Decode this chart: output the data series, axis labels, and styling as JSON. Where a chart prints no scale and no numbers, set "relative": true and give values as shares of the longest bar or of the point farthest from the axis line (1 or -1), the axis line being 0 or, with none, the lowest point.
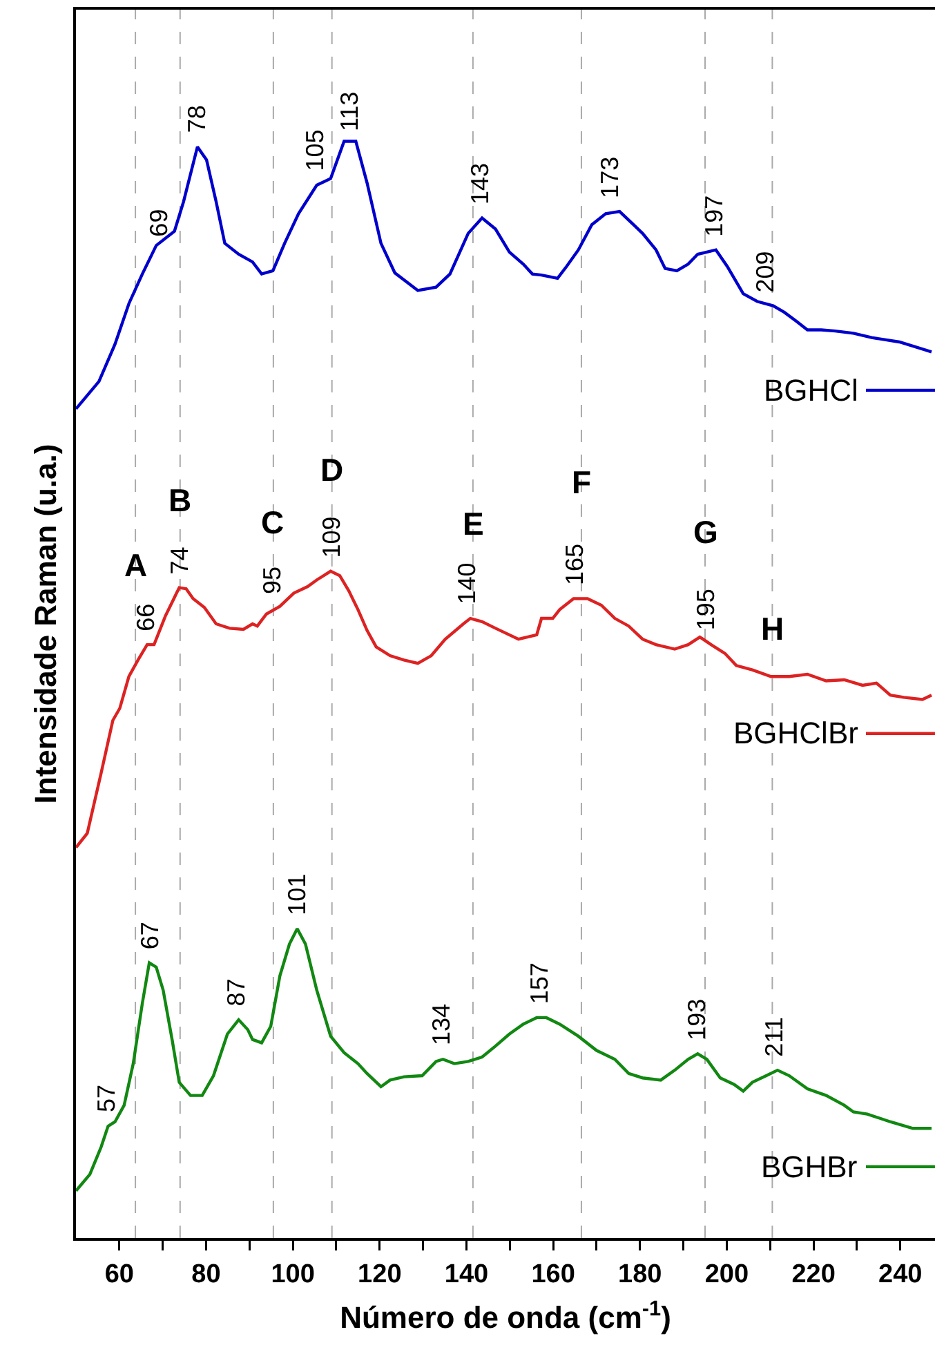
{
  "chart_data": {
    "type": "line",
    "relative": true,
    "xlabel": "Número de onda (cm$^{-1}$)",
    "ylabel": "Intensidade Raman (u.a.)",
    "xlim": [
      50,
      248
    ],
    "xticks": [
      60,
      {
        "value": 70,
        "label": null
      },
      80,
      {
        "value": 90,
        "label": null
      },
      100,
      {
        "value": 110,
        "label": null
      },
      120,
      {
        "value": 130,
        "label": null
      },
      140,
      {
        "value": 150,
        "label": null
      },
      160,
      {
        "value": 170,
        "label": null
      },
      180,
      {
        "value": 190,
        "label": null
      },
      200,
      {
        "value": 210,
        "label": null
      },
      220,
      {
        "value": 230,
        "label": null
      },
      240
    ],
    "tick_labels": "x",
    "grid": false,
    "legend": "right",
    "marker": "none",
    "line_style": "solid",
    "series": [
      {
        "name": "BGHCl",
        "color": "#0000cc",
        "x": [
          50,
          55.3,
          59.0,
          62.2,
          65.3,
          68.5,
          72.7,
          74.8,
          78.0,
          80.1,
          82.3,
          84.3,
          87.5,
          90.7,
          92.8,
          95.4,
          98.1,
          101.3,
          105.5,
          108.7,
          111.8,
          114.5,
          117.1,
          120.3,
          123.5,
          128.8,
          133.0,
          136.2,
          140.4,
          143.6,
          146.7,
          149.9,
          153.1,
          155.2,
          157.3,
          161.0,
          163.1,
          165.8,
          168.9,
          172.1,
          175.3,
          178.5,
          180.6,
          183.7,
          185.8,
          188.5,
          191.1,
          193.3,
          195.4,
          197.5,
          200.1,
          203.8,
          207.0,
          210.7,
          213.3,
          216.0,
          218.6,
          221.8,
          225.0,
          229.2,
          233.4,
          239.8,
          247.2
        ],
        "values": [
          0.756,
          0.781,
          0.815,
          0.852,
          0.879,
          0.905,
          0.918,
          0.945,
          0.995,
          0.983,
          0.945,
          0.907,
          0.897,
          0.89,
          0.879,
          0.882,
          0.907,
          0.934,
          0.96,
          0.966,
          1,
          1,
          0.962,
          0.907,
          0.88,
          0.864,
          0.867,
          0.879,
          0.916,
          0.93,
          0.92,
          0.899,
          0.888,
          0.879,
          0.878,
          0.875,
          0.886,
          0.901,
          0.924,
          0.934,
          0.936,
          0.924,
          0.916,
          0.901,
          0.884,
          0.882,
          0.888,
          0.897,
          0.899,
          0.901,
          0.886,
          0.861,
          0.854,
          0.85,
          0.844,
          0.836,
          0.828,
          0.828,
          0.827,
          0.825,
          0.821,
          0.817,
          0.808
        ]
      },
      {
        "name": "BGHClBr",
        "color": "#dd2222",
        "x": [
          50,
          52.6,
          55.8,
          58.5,
          60.1,
          62.2,
          64.3,
          66.4,
          68.0,
          70.6,
          73.8,
          75.4,
          77.0,
          79.6,
          82.3,
          85.4,
          88.6,
          90.7,
          91.8,
          93.9,
          97.0,
          100.2,
          103.4,
          105.5,
          108.7,
          110.8,
          112.9,
          115.0,
          117.1,
          119.2,
          122.4,
          125.6,
          128.8,
          131.9,
          135.1,
          139.3,
          140.9,
          143.6,
          146.7,
          152.0,
          156.2,
          157.3,
          159.9,
          161.5,
          164.7,
          167.9,
          171.1,
          174.2,
          177.4,
          180.6,
          183.7,
          188.0,
          191.1,
          193.8,
          196.4,
          199.6,
          202.2,
          205.9,
          210.2,
          214.4,
          218.6,
          222.9,
          227.1,
          231.3,
          234.5,
          237.7,
          240.8,
          245.1,
          247.2
        ],
        "values": [
          0.356,
          0.369,
          0.424,
          0.472,
          0.483,
          0.512,
          0.527,
          0.541,
          0.541,
          0.567,
          0.593,
          0.592,
          0.583,
          0.575,
          0.56,
          0.556,
          0.555,
          0.56,
          0.558,
          0.569,
          0.576,
          0.588,
          0.594,
          0.6,
          0.608,
          0.604,
          0.59,
          0.573,
          0.554,
          0.539,
          0.531,
          0.527,
          0.524,
          0.531,
          0.546,
          0.56,
          0.565,
          0.562,
          0.556,
          0.546,
          0.55,
          0.565,
          0.565,
          0.573,
          0.583,
          0.583,
          0.577,
          0.565,
          0.558,
          0.546,
          0.541,
          0.537,
          0.541,
          0.548,
          0.541,
          0.533,
          0.522,
          0.518,
          0.512,
          0.512,
          0.514,
          0.508,
          0.509,
          0.504,
          0.506,
          0.495,
          0.493,
          0.491,
          0.495
        ]
      },
      {
        "name": "BGHBr",
        "color": "#118811",
        "x": [
          50,
          53.2,
          55.8,
          57.4,
          59.0,
          61.1,
          63.2,
          65.3,
          66.9,
          68.5,
          70.1,
          72.2,
          73.8,
          76.4,
          79.1,
          81.7,
          84.9,
          87.5,
          89.6,
          90.7,
          92.8,
          94.9,
          97.0,
          99.2,
          101.0,
          102.9,
          105.5,
          108.7,
          111.8,
          115.0,
          117.1,
          120.3,
          122.4,
          125.6,
          129.8,
          133.0,
          134.6,
          137.2,
          140.4,
          143.6,
          146.7,
          149.9,
          153.1,
          156.2,
          158.4,
          161.5,
          165.8,
          170.0,
          174.2,
          177.4,
          180.6,
          184.8,
          188.0,
          191.1,
          193.3,
          195.4,
          198.5,
          201.7,
          203.8,
          205.9,
          209.1,
          211.7,
          214.4,
          218.6,
          222.9,
          227.1,
          229.2,
          232.4,
          237.7,
          242.9,
          247.2
        ],
        "values": [
          0.043,
          0.058,
          0.083,
          0.102,
          0.106,
          0.121,
          0.159,
          0.214,
          0.251,
          0.247,
          0.226,
          0.18,
          0.142,
          0.13,
          0.13,
          0.148,
          0.186,
          0.199,
          0.19,
          0.181,
          0.178,
          0.193,
          0.239,
          0.268,
          0.282,
          0.268,
          0.226,
          0.184,
          0.169,
          0.159,
          0.15,
          0.138,
          0.144,
          0.147,
          0.148,
          0.161,
          0.163,
          0.159,
          0.161,
          0.165,
          0.175,
          0.186,
          0.195,
          0.201,
          0.201,
          0.195,
          0.184,
          0.171,
          0.163,
          0.15,
          0.146,
          0.144,
          0.153,
          0.163,
          0.168,
          0.163,
          0.146,
          0.14,
          0.134,
          0.142,
          0.148,
          0.153,
          0.148,
          0.136,
          0.13,
          0.121,
          0.115,
          0.113,
          0.106,
          0.1,
          0.1
        ]
      }
    ],
    "ref_lines": [
      {
        "axis": "x",
        "value": 63.7,
        "color": "#aaaaaa",
        "line_style": "dashed"
      },
      {
        "axis": "x",
        "value": 74,
        "color": "#aaaaaa",
        "line_style": "dashed"
      },
      {
        "axis": "x",
        "value": 95.5,
        "color": "#aaaaaa",
        "line_style": "dashed"
      },
      {
        "axis": "x",
        "value": 109,
        "color": "#aaaaaa",
        "line_style": "dashed"
      },
      {
        "axis": "x",
        "value": 141.5,
        "color": "#aaaaaa",
        "line_style": "dashed"
      },
      {
        "axis": "x",
        "value": 166.5,
        "color": "#aaaaaa",
        "line_style": "dashed"
      },
      {
        "axis": "x",
        "value": 195,
        "color": "#aaaaaa",
        "line_style": "dashed"
      },
      {
        "axis": "x",
        "value": 210.5,
        "color": "#aaaaaa",
        "line_style": "dashed"
      }
    ],
    "annotations": [
      {
        "text": "69",
        "x": 69,
        "y": 0.9
      },
      {
        "text": "78",
        "x": 78,
        "y": 0.995
      },
      {
        "text": "105",
        "x": 105,
        "y": 0.96
      },
      {
        "text": "113",
        "x": 113,
        "y": 0.997
      },
      {
        "text": "143",
        "x": 143,
        "y": 0.93
      },
      {
        "text": "173",
        "x": 173,
        "y": 0.936
      },
      {
        "text": "197",
        "x": 197,
        "y": 0.9
      },
      {
        "text": "209",
        "x": 209,
        "y": 0.85
      },
      {
        "text": "66",
        "x": 66,
        "y": 0.541
      },
      {
        "text": "74",
        "x": 74,
        "y": 0.593
      },
      {
        "text": "95",
        "x": 95,
        "y": 0.575
      },
      {
        "text": "109",
        "x": 109,
        "y": 0.608
      },
      {
        "text": "140",
        "x": 140,
        "y": 0.565
      },
      {
        "text": "165",
        "x": 165,
        "y": 0.583
      },
      {
        "text": "195",
        "x": 195,
        "y": 0.541
      },
      {
        "text": "57",
        "x": 57,
        "y": 0.102
      },
      {
        "text": "67",
        "x": 67,
        "y": 0.251
      },
      {
        "text": "87",
        "x": 87,
        "y": 0.199
      },
      {
        "text": "101",
        "x": 101,
        "y": 0.282
      },
      {
        "text": "134",
        "x": 134,
        "y": 0.163
      },
      {
        "text": "157",
        "x": 157,
        "y": 0.201
      },
      {
        "text": "193",
        "x": 193,
        "y": 0.168
      },
      {
        "text": "211",
        "x": 211,
        "y": 0.153
      },
      {
        "text": "A",
        "x": 63.7,
        "y": 0.613
      },
      {
        "text": "B",
        "x": 74,
        "y": 0.673
      },
      {
        "text": "C",
        "x": 95.5,
        "y": 0.653
      },
      {
        "text": "D",
        "x": 109,
        "y": 0.701
      },
      {
        "text": "E",
        "x": 141.5,
        "y": 0.651
      },
      {
        "text": "F",
        "x": 166.5,
        "y": 0.689
      },
      {
        "text": "G",
        "x": 195,
        "y": 0.644
      },
      {
        "text": "H",
        "x": 210.5,
        "y": 0.556
      }
    ]
  }
}
